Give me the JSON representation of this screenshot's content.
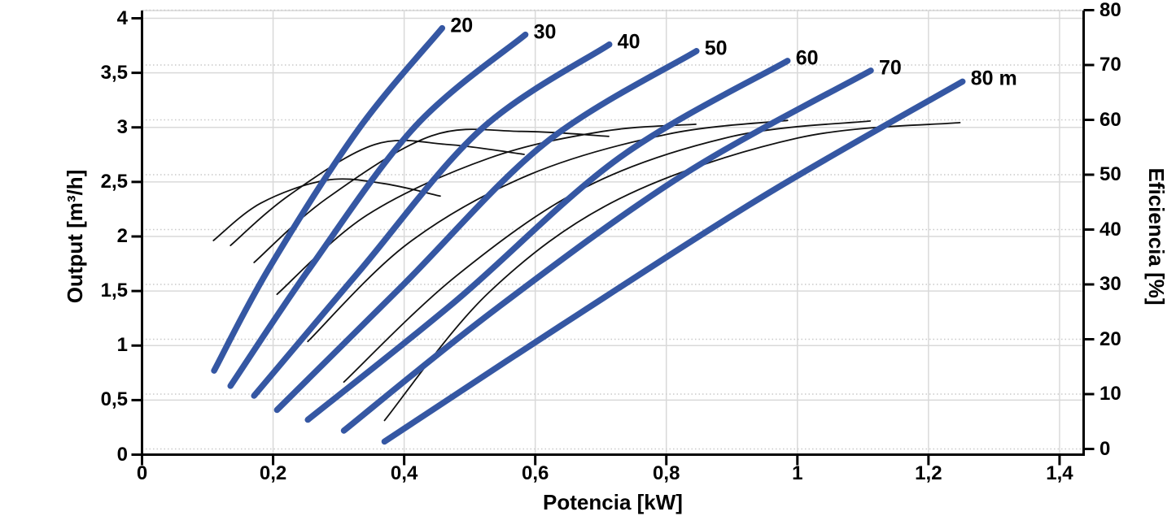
{
  "chart_data": {
    "type": "line",
    "title": "",
    "xlabel": "Potencia [kW]",
    "ylabel_left": "Output [m³/h]",
    "ylabel_right": "Eficiencia [%]",
    "grid": true,
    "x_axis": {
      "min": 0,
      "max": 1.44,
      "tick_values": [
        0,
        0.2,
        0.4,
        0.6,
        0.8,
        1.0,
        1.2,
        1.4
      ],
      "tick_labels": [
        "0",
        "0,2",
        "0,4",
        "0,6",
        "0,8",
        "1",
        "1,2",
        "1,4"
      ]
    },
    "y_axis_left": {
      "min": 0,
      "max": 4,
      "tick_values": [
        0,
        0.5,
        1,
        1.5,
        2,
        2.5,
        3,
        3.5,
        4
      ],
      "tick_labels": [
        "0",
        "0,5",
        "1",
        "1,5",
        "2",
        "2,5",
        "3",
        "3,5",
        "4"
      ]
    },
    "y_axis_right": {
      "min": 0,
      "max": 80,
      "tick_values": [
        0,
        10,
        20,
        30,
        40,
        50,
        60,
        70,
        80
      ],
      "tick_labels": [
        "0",
        "10",
        "20",
        "30",
        "40",
        "50",
        "60",
        "70",
        "80"
      ]
    },
    "pump_curves": [
      {
        "label": "20",
        "head_m": 20,
        "axis": "left",
        "points": [
          [
            0.11,
            0.77
          ],
          [
            0.194,
            1.71
          ],
          [
            0.33,
            2.98
          ],
          [
            0.458,
            3.91
          ]
        ]
      },
      {
        "label": "30",
        "head_m": 30,
        "axis": "left",
        "points": [
          [
            0.135,
            0.63
          ],
          [
            0.256,
            1.71
          ],
          [
            0.417,
            3.01
          ],
          [
            0.585,
            3.85
          ]
        ]
      },
      {
        "label": "40",
        "head_m": 40,
        "axis": "left",
        "points": [
          [
            0.171,
            0.54
          ],
          [
            0.33,
            1.67
          ],
          [
            0.517,
            2.98
          ],
          [
            0.713,
            3.76
          ]
        ]
      },
      {
        "label": "50",
        "head_m": 50,
        "axis": "left",
        "points": [
          [
            0.206,
            0.41
          ],
          [
            0.399,
            1.56
          ],
          [
            0.616,
            2.86
          ],
          [
            0.846,
            3.7
          ]
        ]
      },
      {
        "label": "60",
        "head_m": 60,
        "axis": "left",
        "points": [
          [
            0.253,
            0.32
          ],
          [
            0.479,
            1.41
          ],
          [
            0.728,
            2.72
          ],
          [
            0.985,
            3.61
          ]
        ]
      },
      {
        "label": "70",
        "head_m": 70,
        "axis": "left",
        "points": [
          [
            0.308,
            0.22
          ],
          [
            0.541,
            1.34
          ],
          [
            0.827,
            2.57
          ],
          [
            1.112,
            3.52
          ]
        ]
      },
      {
        "label": "80 m",
        "head_m": 80,
        "axis": "left",
        "points": [
          [
            0.37,
            0.12
          ],
          [
            0.641,
            1.19
          ],
          [
            0.951,
            2.38
          ],
          [
            1.252,
            3.42
          ]
        ]
      }
    ],
    "efficiency_curves": [
      {
        "head_m": 20,
        "axis": "right",
        "points": [
          [
            0.109,
            38.0
          ],
          [
            0.181,
            44.8
          ],
          [
            0.281,
            49.0
          ],
          [
            0.368,
            48.4
          ],
          [
            0.455,
            46.1
          ]
        ]
      },
      {
        "head_m": 30,
        "axis": "right",
        "points": [
          [
            0.135,
            37.1
          ],
          [
            0.225,
            46.3
          ],
          [
            0.355,
            55.5
          ],
          [
            0.467,
            55.5
          ],
          [
            0.583,
            53.7
          ]
        ]
      },
      {
        "head_m": 40,
        "axis": "right",
        "points": [
          [
            0.171,
            34.0
          ],
          [
            0.281,
            45.6
          ],
          [
            0.442,
            57.1
          ],
          [
            0.579,
            57.9
          ],
          [
            0.712,
            57.0
          ]
        ]
      },
      {
        "head_m": 50,
        "axis": "right",
        "points": [
          [
            0.206,
            28.2
          ],
          [
            0.343,
            42.6
          ],
          [
            0.529,
            53.0
          ],
          [
            0.703,
            57.9
          ],
          [
            0.845,
            59.2
          ]
        ]
      },
      {
        "head_m": 60,
        "axis": "right",
        "points": [
          [
            0.253,
            19.6
          ],
          [
            0.405,
            37.4
          ],
          [
            0.591,
            50.0
          ],
          [
            0.802,
            57.4
          ],
          [
            0.985,
            59.9
          ]
        ]
      },
      {
        "head_m": 70,
        "axis": "right",
        "points": [
          [
            0.308,
            12.2
          ],
          [
            0.479,
            31.5
          ],
          [
            0.678,
            47.8
          ],
          [
            0.901,
            57.0
          ],
          [
            1.111,
            59.8
          ]
        ]
      },
      {
        "head_m": 80,
        "axis": "right",
        "points": [
          [
            0.37,
            5.2
          ],
          [
            0.529,
            28.5
          ],
          [
            0.728,
            45.6
          ],
          [
            1.001,
            56.7
          ],
          [
            1.248,
            59.5
          ]
        ]
      }
    ],
    "colors": {
      "pump_curve": "#3557a3",
      "efficiency_curve": "#111111",
      "grid_solid": "#d9d9d9",
      "grid_dotted": "#c9c9c9",
      "axis": "#000000",
      "text": "#000000",
      "background": "#ffffff"
    },
    "legend_position": "none"
  }
}
